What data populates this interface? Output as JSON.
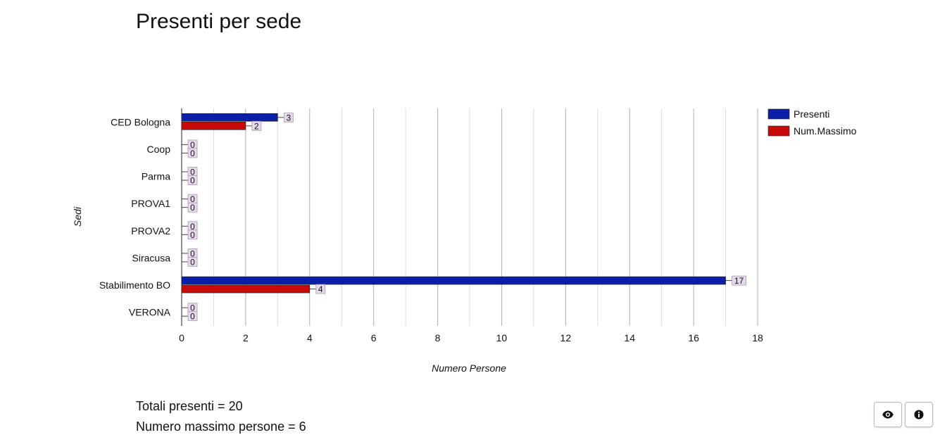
{
  "page": {
    "title": "Presenti per sede"
  },
  "chart_data": {
    "type": "bar",
    "orientation": "horizontal",
    "categories": [
      "CED Bologna",
      "Coop",
      "Parma",
      "PROVA1",
      "PROVA2",
      "Siracusa",
      "Stabilimento BO",
      "VERONA"
    ],
    "series": [
      {
        "name": "Presenti",
        "color": "#0a1fa8",
        "values": [
          3,
          0,
          0,
          0,
          0,
          0,
          17,
          0
        ]
      },
      {
        "name": "Num.Massimo",
        "color": "#c80a0a",
        "values": [
          2,
          0,
          0,
          0,
          0,
          0,
          4,
          0
        ]
      }
    ],
    "xlabel": "Numero Persone",
    "ylabel": "Sedi",
    "xlim": [
      0,
      18
    ],
    "xticks": [
      0,
      2,
      4,
      6,
      8,
      10,
      12,
      14,
      16,
      18
    ],
    "grid": true,
    "legend_position": "top-right",
    "data_labels": true
  },
  "summary": {
    "totali_presenti": "Totali presenti = 20",
    "numero_massimo": "Numero massimo persone = 6"
  },
  "buttons": {
    "view_icon": "eye-icon",
    "info_icon": "info-icon"
  }
}
